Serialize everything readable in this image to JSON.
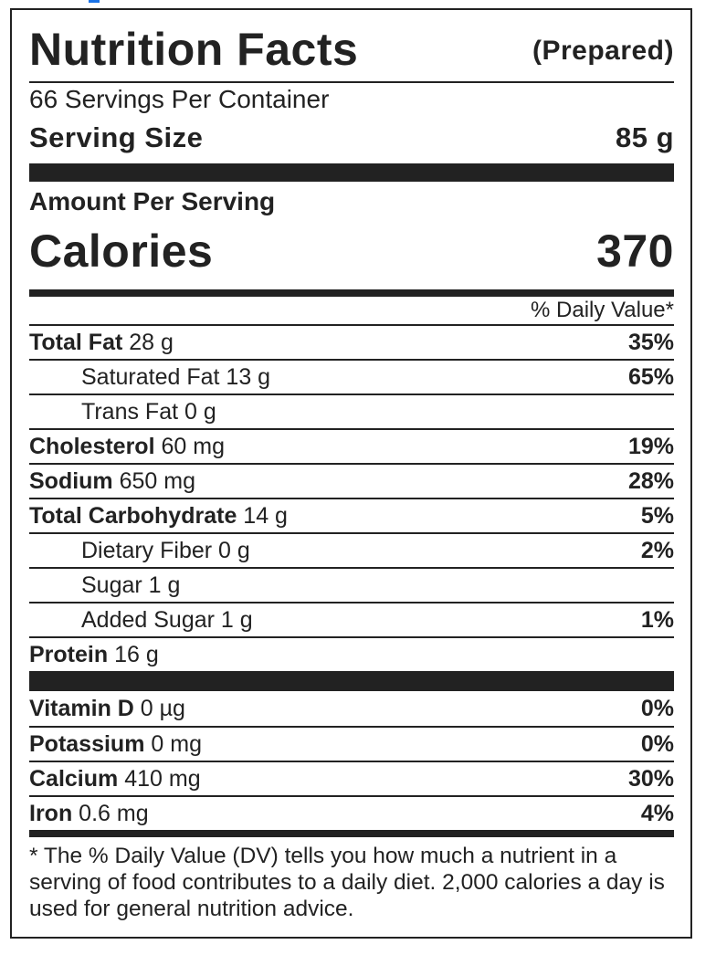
{
  "header": {
    "title": "Nutrition Facts",
    "prepared": "(Prepared)"
  },
  "servings_per_container": "66 Servings Per Container",
  "serving_size": {
    "label": "Serving Size",
    "value": "85 g"
  },
  "amount_per_serving": "Amount Per Serving",
  "calories": {
    "label": "Calories",
    "value": "370"
  },
  "daily_value_header": "% Daily Value*",
  "nutrients": [
    {
      "name": "Total Fat",
      "amount": "28 g",
      "dv": "35%"
    },
    {
      "name": "Saturated Fat 13 g",
      "amount": "",
      "dv": "65%"
    },
    {
      "name": "Trans Fat 0 g",
      "amount": "",
      "dv": ""
    },
    {
      "name": "Cholesterol",
      "amount": "60 mg",
      "dv": "19%"
    },
    {
      "name": "Sodium",
      "amount": "650 mg",
      "dv": "28%"
    },
    {
      "name": "Total Carbohydrate",
      "amount": "14 g",
      "dv": "5%"
    },
    {
      "name": "Dietary Fiber 0 g",
      "amount": "",
      "dv": "2%"
    },
    {
      "name": "Sugar 1 g",
      "amount": "",
      "dv": ""
    },
    {
      "name": "Added Sugar 1 g",
      "amount": "",
      "dv": "1%"
    },
    {
      "name": "Protein",
      "amount": "16 g",
      "dv": ""
    }
  ],
  "vitamins": [
    {
      "name": "Vitamin D",
      "amount": "0 µg",
      "dv": "0%"
    },
    {
      "name": "Potassium",
      "amount": "0 mg",
      "dv": "0%"
    },
    {
      "name": "Calcium",
      "amount": "410 mg",
      "dv": "30%"
    },
    {
      "name": "Iron",
      "amount": "0.6 mg",
      "dv": "4%"
    }
  ],
  "footnote": "* The % Daily Value (DV) tells you how much a nutrient in a serving of food contributes to a daily diet. 2,000 calories a day is used for general nutrition advice."
}
